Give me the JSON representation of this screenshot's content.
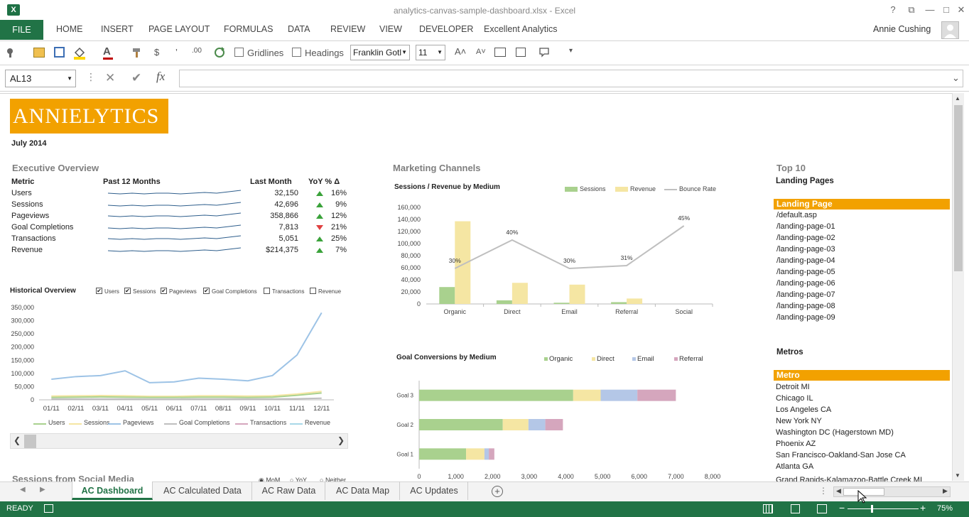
{
  "window": {
    "title": "analytics-canvas-sample-dashboard.xlsx - Excel",
    "user": "Annie Cushing",
    "controls": [
      "?",
      "⧉",
      "—",
      "□",
      "✕"
    ]
  },
  "ribbon": {
    "file": "FILE",
    "tabs": [
      "HOME",
      "INSERT",
      "PAGE LAYOUT",
      "FORMULAS",
      "DATA",
      "REVIEW",
      "VIEW",
      "DEVELOPER",
      "Excellent Analytics"
    ]
  },
  "toolbar": {
    "gridlines": "Gridlines",
    "headings": "Headings",
    "font": "Franklin Gotl",
    "size": "11",
    "grow_font": "A˄",
    "shrink_font": "A˅",
    "currency": "$",
    "comma": "’",
    "decimals": ".00"
  },
  "formula_bar": {
    "name_box": "AL13",
    "fx": "fx",
    "cancel": "✕",
    "enter": "✔"
  },
  "dashboard": {
    "logo": "ANNIELYTICS",
    "month": "July 2014",
    "exec": {
      "title": "Executive Overview",
      "headers": [
        "Metric",
        "Past 12 Months",
        "Last Month",
        "YoY % Δ"
      ],
      "rows": [
        {
          "metric": "Users",
          "last": "32,150",
          "yoy": "16%",
          "dir": "up"
        },
        {
          "metric": "Sessions",
          "last": "42,696",
          "yoy": "9%",
          "dir": "up"
        },
        {
          "metric": "Pageviews",
          "last": "358,866",
          "yoy": "12%",
          "dir": "up"
        },
        {
          "metric": "Goal Completions",
          "last": "7,813",
          "yoy": "21%",
          "dir": "down"
        },
        {
          "metric": "Transactions",
          "last": "5,051",
          "yoy": "25%",
          "dir": "up"
        },
        {
          "metric": "Revenue",
          "last": "$214,375",
          "yoy": "7%",
          "dir": "up"
        }
      ]
    },
    "historical": {
      "title": "Historical Overview",
      "checkboxes": [
        {
          "label": "Users",
          "checked": true
        },
        {
          "label": "Sessions",
          "checked": true
        },
        {
          "label": "Pageviews",
          "checked": true
        },
        {
          "label": "Goal Completions",
          "checked": true
        },
        {
          "label": "Transactions",
          "checked": false
        },
        {
          "label": "Revenue",
          "checked": false
        }
      ],
      "legend": [
        "Users",
        "Sessions",
        "Pageviews",
        "Goal Completions",
        "Transactions",
        "Revenue"
      ],
      "yticks": [
        "350,000",
        "300,000",
        "250,000",
        "200,000",
        "150,000",
        "100,000",
        "50,000",
        "0"
      ]
    },
    "social": {
      "title": "Sessions from Social Media",
      "options": [
        "MoM",
        "YoY",
        "Neither"
      ]
    },
    "marketing": {
      "title": "Marketing Channels",
      "chart_title": "Sessions / Revenue by Medium",
      "legend": [
        "Sessions",
        "Revenue",
        "Bounce Rate"
      ],
      "yticks": [
        "160,000",
        "140,000",
        "120,000",
        "100,000",
        "80,000",
        "60,000",
        "40,000",
        "20,000",
        "0"
      ],
      "pct_labels": [
        "30%",
        "40%",
        "30%",
        "31%",
        "45%"
      ]
    },
    "goals": {
      "chart_title": "Goal Conversions by Medium",
      "legend": [
        "Organic",
        "Direct",
        "Email",
        "Referral"
      ],
      "xticks": [
        "0",
        "1,000",
        "2,000",
        "3,000",
        "4,000",
        "5,000",
        "6,000",
        "7,000",
        "8,000"
      ]
    },
    "top10": {
      "title": "Top 10",
      "subtitle": "Landing Pages",
      "header": "Landing Page",
      "pages": [
        "/default.asp",
        "/landing-page-01",
        "/landing-page-02",
        "/landing-page-03",
        "/landing-page-04",
        "/landing-page-05",
        "/landing-page-06",
        "/landing-page-07",
        "/landing-page-08",
        "/landing-page-09"
      ]
    },
    "metros": {
      "title": "Metros",
      "header": "Metro",
      "items": [
        "Detroit MI",
        "Chicago IL",
        "Los Angeles CA",
        "New York NY",
        "Washington DC (Hagerstown MD)",
        "Phoenix AZ",
        "San Francisco-Oakland-San Jose CA",
        "Atlanta GA",
        "Grand Rapids-Kalamazoo-Battle Creek MI"
      ]
    }
  },
  "sheets": {
    "tabs": [
      "AC Dashboard",
      "AC Calculated Data",
      "AC Raw Data",
      "AC Data Map",
      "AC Updates"
    ],
    "active": "AC Dashboard",
    "add": "+"
  },
  "status": {
    "ready": "READY",
    "zoom": "75%",
    "zoom_minus": "−",
    "zoom_plus": "+"
  },
  "chart_data": [
    {
      "type": "line",
      "title": "Historical Overview",
      "categories": [
        "01/11",
        "02/11",
        "03/11",
        "04/11",
        "05/11",
        "06/11",
        "07/11",
        "08/11",
        "09/11",
        "10/11",
        "11/11",
        "12/11"
      ],
      "ylim": [
        0,
        350000
      ],
      "series": [
        {
          "name": "Pageviews",
          "color": "#9dc3e6",
          "values": [
            78000,
            88000,
            92000,
            110000,
            65000,
            68000,
            82000,
            78000,
            72000,
            92000,
            170000,
            330000
          ]
        },
        {
          "name": "Sessions",
          "color": "#f5e6a3",
          "values": [
            14000,
            15000,
            16000,
            15000,
            13000,
            13000,
            15000,
            15000,
            14000,
            15000,
            22000,
            32000
          ]
        },
        {
          "name": "Users",
          "color": "#a9d18e",
          "values": [
            9000,
            10000,
            11000,
            10000,
            9000,
            9000,
            10000,
            10000,
            9000,
            10000,
            17000,
            26000
          ]
        },
        {
          "name": "Goal Completions",
          "color": "#bfbfbf",
          "values": [
            3000,
            3000,
            3000,
            3000,
            2500,
            2500,
            3000,
            3000,
            3000,
            3000,
            4000,
            6000
          ]
        }
      ]
    },
    {
      "type": "bar",
      "title": "Sessions / Revenue by Medium",
      "categories": [
        "Organic",
        "Direct",
        "Email",
        "Referral",
        "Social"
      ],
      "ylim": [
        0,
        160000
      ],
      "series": [
        {
          "name": "Sessions",
          "color": "#a9d18e",
          "values": [
            28000,
            6000,
            2000,
            3000,
            0
          ]
        },
        {
          "name": "Revenue",
          "color": "#f5e6a3",
          "values": [
            137000,
            35000,
            32000,
            9000,
            0
          ]
        },
        {
          "name": "Bounce Rate",
          "color": "#bfbfbf",
          "type": "line",
          "values": [
            0.3,
            0.4,
            0.3,
            0.31,
            0.45
          ]
        }
      ]
    },
    {
      "type": "bar",
      "title": "Goal Conversions by Medium",
      "categories": [
        "Goal 3",
        "Goal 2",
        "Goal 1"
      ],
      "xlim": [
        0,
        8000
      ],
      "series": [
        {
          "name": "Organic",
          "color": "#a9d18e",
          "values": [
            4200,
            2280,
            1280
          ]
        },
        {
          "name": "Direct",
          "color": "#f5e6a3",
          "values": [
            750,
            700,
            500
          ]
        },
        {
          "name": "Email",
          "color": "#b4c7e7",
          "values": [
            1000,
            460,
            120
          ]
        },
        {
          "name": "Referral",
          "color": "#d5a6bd",
          "values": [
            1050,
            480,
            150
          ]
        }
      ]
    }
  ]
}
